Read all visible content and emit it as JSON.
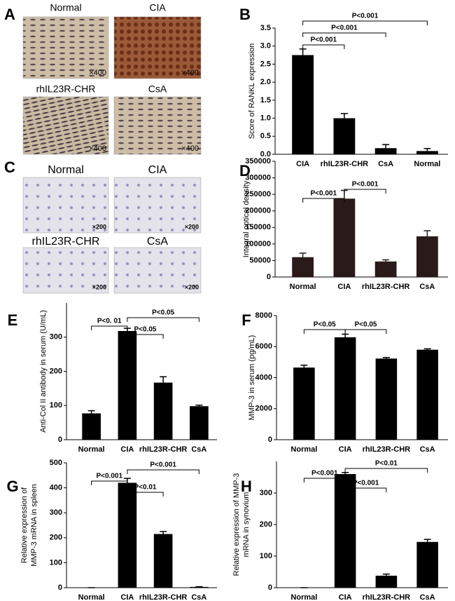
{
  "image_panels": [
    {
      "letter": "A",
      "images": [
        {
          "title": "Normal",
          "magnification": "×400"
        },
        {
          "title": "CIA",
          "magnification": "×400"
        },
        {
          "title": "rhIL23R-CHR",
          "magnification": "×400"
        },
        {
          "title": "CsA",
          "magnification": "×400"
        }
      ]
    },
    {
      "letter": "C",
      "images": [
        {
          "title": "Normal",
          "magnification": "×200"
        },
        {
          "title": "CIA",
          "magnification": "×200"
        },
        {
          "title": "rhIL23R-CHR",
          "magnification": "×200"
        },
        {
          "title": "CsA",
          "magnification": "×200"
        }
      ]
    }
  ],
  "chart_data": [
    {
      "type": "bar",
      "panel": "B",
      "ylabel": [
        "Score of RANKL expression"
      ],
      "categories": [
        "CIA",
        "rhIL23R-CHR",
        "CsA",
        "Normal"
      ],
      "values": [
        2.75,
        1.0,
        0.17,
        0.09
      ],
      "errors": [
        0.17,
        0.13,
        0.1,
        0.07
      ],
      "color": "#000000",
      "ylim": [
        0,
        3.5
      ],
      "yticks": [
        {
          "value": 0,
          "label": "0.0"
        },
        0.5,
        {
          "value": 1,
          "label": "1.0"
        },
        1.5,
        {
          "value": 2,
          "label": "2.0"
        },
        2.5,
        {
          "value": 3,
          "label": "3.0"
        },
        3.5
      ],
      "brackets": [
        {
          "from": "CIA",
          "to": "Normal",
          "label": "P<0.001"
        },
        {
          "from": "CIA",
          "to": "CsA",
          "label": "P<0.001"
        },
        {
          "from": "CIA",
          "to": "rhIL23R-CHR",
          "label": "P<0.001"
        }
      ]
    },
    {
      "type": "bar",
      "panel": "D",
      "ylabel": [
        "Integral optical density"
      ],
      "categories": [
        "Normal",
        "CIA",
        "rhIL23R-CHR",
        "CsA"
      ],
      "values": [
        60000,
        237000,
        47000,
        123000
      ],
      "errors": [
        12000,
        25000,
        5000,
        17000
      ],
      "color": "#2b1a1a",
      "ylim": [
        0,
        350000
      ],
      "yticks": [
        0,
        50000,
        100000,
        150000,
        200000,
        250000,
        300000,
        350000
      ],
      "brackets": [
        {
          "from": "CIA",
          "to": "rhIL23R-CHR",
          "label": "P<0.001"
        },
        {
          "from": "Normal",
          "to": "CIA",
          "label": "P<0.001"
        }
      ]
    },
    {
      "type": "bar",
      "panel": "E",
      "ylabel": [
        "Anti-Col II antibody in serum (U/mL)"
      ],
      "categories": [
        "Normal",
        "CIA",
        "rhIL23R-CHR",
        "CsA"
      ],
      "values": [
        77,
        318,
        167,
        98
      ],
      "errors": [
        8,
        8,
        17,
        3
      ],
      "color": "#000000",
      "ylim": [
        0,
        400
      ],
      "yticks": [
        0,
        100,
        200,
        300
      ],
      "brackets": [
        {
          "from": "CIA",
          "to": "CsA",
          "label": "P<0.05"
        },
        {
          "from": "Normal",
          "to": "CIA",
          "label": "P<0. 01"
        },
        {
          "from": "CIA",
          "to": "rhIL23R-CHR",
          "label": "P<0.05"
        }
      ]
    },
    {
      "type": "bar",
      "panel": "F",
      "ylabel": [
        "MMP-3 in serum (pg/mL)"
      ],
      "categories": [
        "Normal",
        "CIA",
        "rhIL23R-CHR",
        "CsA"
      ],
      "values": [
        4650,
        6600,
        5230,
        5800
      ],
      "errors": [
        150,
        200,
        70,
        60
      ],
      "color": "#000000",
      "ylim": [
        0,
        8000
      ],
      "yticks": [
        0,
        2000,
        4000,
        6000,
        8000
      ],
      "brackets": [
        {
          "from": "Normal",
          "to": "CIA",
          "label": "P<0.05"
        },
        {
          "from": "CIA",
          "to": "rhIL23R-CHR",
          "label": "P<0.05"
        }
      ]
    },
    {
      "type": "bar",
      "panel": "G",
      "ylabel": [
        "Relative expression of",
        "MMP-3 mRNA in spleen"
      ],
      "categories": [
        "Normal",
        "CIA",
        "rhIL23R-CHR",
        "CsA"
      ],
      "values": [
        0,
        420,
        215,
        3
      ],
      "errors": [
        0,
        18,
        10,
        1
      ],
      "color": "#000000",
      "ylim": [
        0,
        500
      ],
      "yticks": [
        0,
        100,
        200,
        300,
        400,
        500
      ],
      "brackets": [
        {
          "from": "CIA",
          "to": "CsA",
          "label": "P<0.001"
        },
        {
          "from": "Normal",
          "to": "CIA",
          "label": "P<0.001"
        },
        {
          "from": "CIA",
          "to": "rhIL23R-CHR",
          "label": "P<0.01"
        }
      ]
    },
    {
      "type": "bar",
      "panel": "H",
      "ylabel": [
        "Relative expression of MMP-3",
        "mRNA in synovium"
      ],
      "categories": [
        "Normal",
        "CIA",
        "rhIL23R-CHR",
        "CsA"
      ],
      "values": [
        0,
        360,
        38,
        145
      ],
      "errors": [
        0,
        5,
        5,
        8
      ],
      "color": "#000000",
      "ylim": [
        0,
        400
      ],
      "yticks": [
        0,
        100,
        200,
        300
      ],
      "brackets": [
        {
          "from": "CIA",
          "to": "CsA",
          "label": "P<0.01"
        },
        {
          "from": "Normal",
          "to": "CIA",
          "label": "P<0.001"
        },
        {
          "from": "CIA",
          "to": "rhIL23R-CHR",
          "label": "P<0.001"
        }
      ]
    }
  ]
}
